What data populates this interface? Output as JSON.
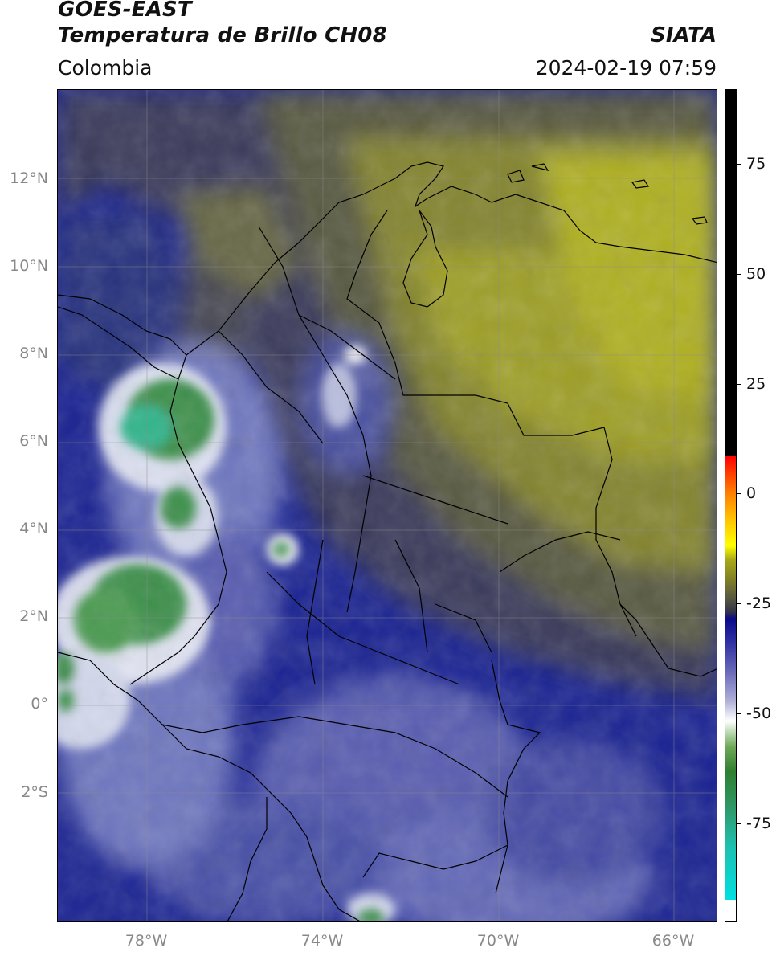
{
  "header": {
    "line1": "GOES-EAST",
    "line2": "Temperatura de Brillo CH08",
    "org": "SIATA",
    "region": "Colombia",
    "datetime": "2024-02-19 07:59"
  },
  "axes": {
    "lat_labels": [
      "12°N",
      "10°N",
      "8°N",
      "6°N",
      "4°N",
      "2°N",
      "0°",
      "2°S"
    ],
    "lon_labels": [
      "78°W",
      "74°W",
      "70°W",
      "66°W"
    ]
  },
  "colorbar": {
    "labels": [
      "75",
      "50",
      "25",
      "0",
      "-25",
      "-50",
      "-75"
    ]
  },
  "colors": {
    "warm_dry": "#b5b52a",
    "mid_level": "#3b3b55",
    "cold_cloud": "#101a8c",
    "very_cold": "#ffffff",
    "deep_convection": "#2f8f46"
  }
}
